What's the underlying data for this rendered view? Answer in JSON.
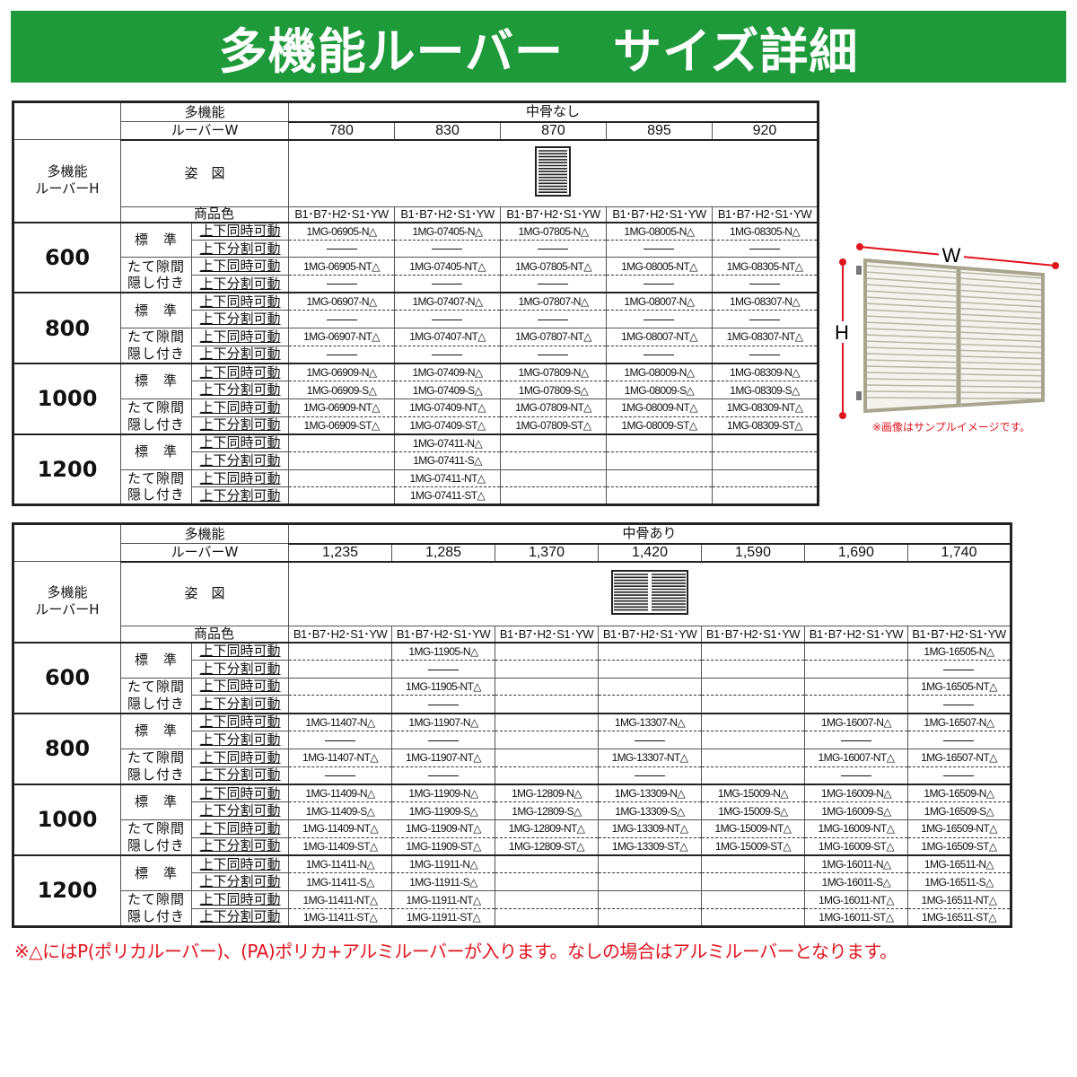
{
  "title": "多機能ルーバー　サイズ詳細",
  "labels": {
    "product": "多機能",
    "width_label": "ルーバーW",
    "height_product": "多機能",
    "height_label": "ルーバーH",
    "figure": "姿　図",
    "color": "商品色",
    "std": "標　準",
    "slit1": "たて隙間",
    "slit2": "隠し付き",
    "mode_sync": "上下同時可動",
    "mode_split": "上下分割可動"
  },
  "illustration": {
    "w_label": "W",
    "h_label": "H",
    "caption": "※画像はサンプルイメージです。",
    "dim_color": "#e0141e"
  },
  "note": "※△にはP(ポリカルーバー)、(PA)ポリカ+アルミルーバーが入ります。なしの場合はアルミルーバーとなります。",
  "tables": [
    {
      "group": "中骨なし",
      "widths": [
        "780",
        "830",
        "870",
        "895",
        "920"
      ],
      "colors": [
        "B1･B7･H2･S1･YW",
        "B1･B7･H2･S1･YW",
        "B1･B7･H2･S1･YW",
        "B1･B7･H2･S1･YW",
        "B1･B7･H2･S1･YW"
      ],
      "rows": [
        {
          "h": "600",
          "cells": [
            [
              "1MG-06905-N△",
              "1MG-07405-N△",
              "1MG-07805-N△",
              "1MG-08005-N△",
              "1MG-08305-N△"
            ],
            [
              "—",
              "—",
              "—",
              "—",
              "—"
            ],
            [
              "1MG-06905-NT△",
              "1MG-07405-NT△",
              "1MG-07805-NT△",
              "1MG-08005-NT△",
              "1MG-08305-NT△"
            ],
            [
              "—",
              "—",
              "—",
              "—",
              "—"
            ]
          ]
        },
        {
          "h": "800",
          "cells": [
            [
              "1MG-06907-N△",
              "1MG-07407-N△",
              "1MG-07807-N△",
              "1MG-08007-N△",
              "1MG-08307-N△"
            ],
            [
              "—",
              "—",
              "—",
              "—",
              "—"
            ],
            [
              "1MG-06907-NT△",
              "1MG-07407-NT△",
              "1MG-07807-NT△",
              "1MG-08007-NT△",
              "1MG-08307-NT△"
            ],
            [
              "—",
              "—",
              "—",
              "—",
              "—"
            ]
          ]
        },
        {
          "h": "1000",
          "cells": [
            [
              "1MG-06909-N△",
              "1MG-07409-N△",
              "1MG-07809-N△",
              "1MG-08009-N△",
              "1MG-08309-N△"
            ],
            [
              "1MG-06909-S△",
              "1MG-07409-S△",
              "1MG-07809-S△",
              "1MG-08009-S△",
              "1MG-08309-S△"
            ],
            [
              "1MG-06909-NT△",
              "1MG-07409-NT△",
              "1MG-07809-NT△",
              "1MG-08009-NT△",
              "1MG-08309-NT△"
            ],
            [
              "1MG-06909-ST△",
              "1MG-07409-ST△",
              "1MG-07809-ST△",
              "1MG-08009-ST△",
              "1MG-08309-ST△"
            ]
          ]
        },
        {
          "h": "1200",
          "cells": [
            [
              "",
              "1MG-07411-N△",
              "",
              "",
              ""
            ],
            [
              "",
              "1MG-07411-S△",
              "",
              "",
              ""
            ],
            [
              "",
              "1MG-07411-NT△",
              "",
              "",
              ""
            ],
            [
              "",
              "1MG-07411-ST△",
              "",
              "",
              ""
            ]
          ]
        }
      ]
    },
    {
      "group": "中骨あり",
      "widths": [
        "1,235",
        "1,285",
        "1,370",
        "1,420",
        "1,590",
        "1,690",
        "1,740"
      ],
      "colors": [
        "B1･B7･H2･S1･YW",
        "B1･B7･H2･S1･YW",
        "B1･B7･H2･S1･YW",
        "B1･B7･H2･S1･YW",
        "B1･B7･H2･S1･YW",
        "B1･B7･H2･S1･YW",
        "B1･B7･H2･S1･YW"
      ],
      "rows": [
        {
          "h": "600",
          "cells": [
            [
              "",
              "1MG-11905-N△",
              "",
              "",
              "",
              "",
              "1MG-16505-N△"
            ],
            [
              "",
              "—",
              "",
              "",
              "",
              "",
              "—"
            ],
            [
              "",
              "1MG-11905-NT△",
              "",
              "",
              "",
              "",
              "1MG-16505-NT△"
            ],
            [
              "",
              "—",
              "",
              "",
              "",
              "",
              "—"
            ]
          ]
        },
        {
          "h": "800",
          "cells": [
            [
              "1MG-11407-N△",
              "1MG-11907-N△",
              "",
              "1MG-13307-N△",
              "",
              "1MG-16007-N△",
              "1MG-16507-N△"
            ],
            [
              "—",
              "—",
              "",
              "—",
              "",
              "—",
              "—"
            ],
            [
              "1MG-11407-NT△",
              "1MG-11907-NT△",
              "",
              "1MG-13307-NT△",
              "",
              "1MG-16007-NT△",
              "1MG-16507-NT△"
            ],
            [
              "—",
              "—",
              "",
              "—",
              "",
              "—",
              "—"
            ]
          ]
        },
        {
          "h": "1000",
          "cells": [
            [
              "1MG-11409-N△",
              "1MG-11909-N△",
              "1MG-12809-N△",
              "1MG-13309-N△",
              "1MG-15009-N△",
              "1MG-16009-N△",
              "1MG-16509-N△"
            ],
            [
              "1MG-11409-S△",
              "1MG-11909-S△",
              "1MG-12809-S△",
              "1MG-13309-S△",
              "1MG-15009-S△",
              "1MG-16009-S△",
              "1MG-16509-S△"
            ],
            [
              "1MG-11409-NT△",
              "1MG-11909-NT△",
              "1MG-12809-NT△",
              "1MG-13309-NT△",
              "1MG-15009-NT△",
              "1MG-16009-NT△",
              "1MG-16509-NT△"
            ],
            [
              "1MG-11409-ST△",
              "1MG-11909-ST△",
              "1MG-12809-ST△",
              "1MG-13309-ST△",
              "1MG-15009-ST△",
              "1MG-16009-ST△",
              "1MG-16509-ST△"
            ]
          ]
        },
        {
          "h": "1200",
          "cells": [
            [
              "1MG-11411-N△",
              "1MG-11911-N△",
              "",
              "",
              "",
              "1MG-16011-N△",
              "1MG-16511-N△"
            ],
            [
              "1MG-11411-S△",
              "1MG-11911-S△",
              "",
              "",
              "",
              "1MG-16011-S△",
              "1MG-16511-S△"
            ],
            [
              "1MG-11411-NT△",
              "1MG-11911-NT△",
              "",
              "",
              "",
              "1MG-16011-NT△",
              "1MG-16511-NT△"
            ],
            [
              "1MG-11411-ST△",
              "1MG-11911-ST△",
              "",
              "",
              "",
              "1MG-16011-ST△",
              "1MG-16511-ST△"
            ]
          ]
        }
      ]
    }
  ]
}
